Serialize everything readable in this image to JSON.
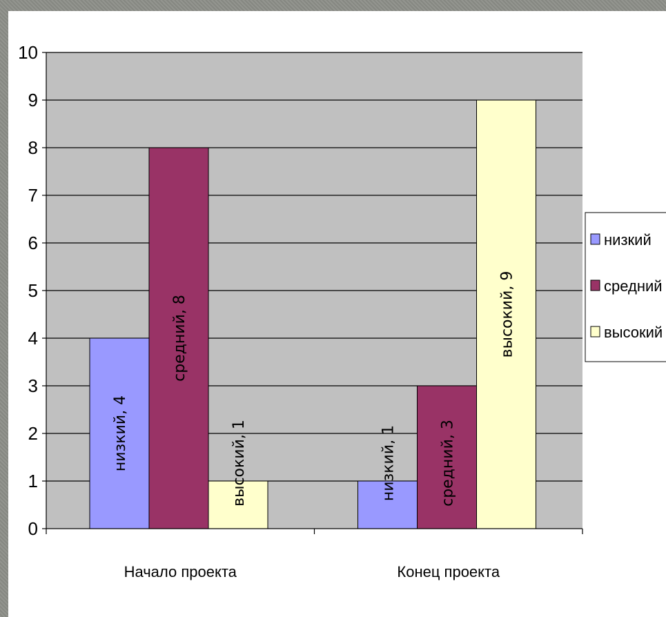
{
  "chart_data": {
    "type": "bar",
    "title": "",
    "xlabel": "",
    "ylabel": "",
    "categories": [
      "Начало проекта",
      "Конец проекта"
    ],
    "series": [
      {
        "name": "низкий",
        "values": [
          4,
          1
        ],
        "color": "#9999ff"
      },
      {
        "name": "средний",
        "values": [
          8,
          3
        ],
        "color": "#993366"
      },
      {
        "name": "высокий",
        "values": [
          1,
          9
        ],
        "color": "#ffffcc"
      }
    ],
    "ylim": [
      0,
      10
    ],
    "yticks": [
      "0",
      "1",
      "2",
      "3",
      "4",
      "5",
      "6",
      "7",
      "8",
      "9",
      "10"
    ],
    "data_labels": true,
    "grid": true,
    "plot_background": "#c0c0c0",
    "legend_position": "right"
  }
}
